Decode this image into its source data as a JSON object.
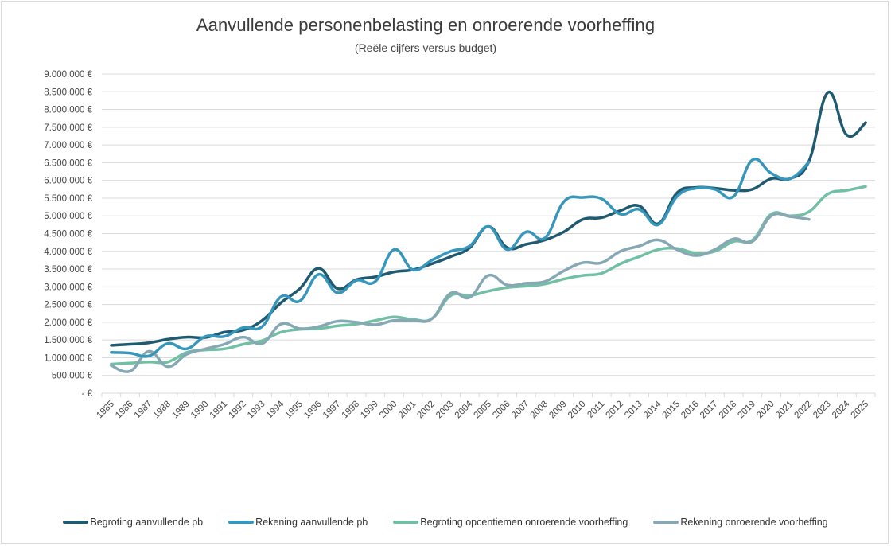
{
  "chart_data": {
    "type": "line",
    "title": "Aanvullende personenbelasting en onroerende voorheffing",
    "subtitle": "(Reële cijfers versus budget)",
    "xlabel": "",
    "ylabel": "",
    "ylim": [
      0,
      9000000
    ],
    "y_ticks": [
      0,
      500000,
      1000000,
      1500000,
      2000000,
      2500000,
      3000000,
      3500000,
      4000000,
      4500000,
      5000000,
      5500000,
      6000000,
      6500000,
      7000000,
      7500000,
      8000000,
      8500000,
      9000000
    ],
    "y_tick_labels": [
      "- €",
      "500.000 €",
      "1.000.000 €",
      "1.500.000 €",
      "2.000.000 €",
      "2.500.000 €",
      "3.000.000 €",
      "3.500.000 €",
      "4.000.000 €",
      "4.500.000 €",
      "5.000.000 €",
      "5.500.000 €",
      "6.000.000 €",
      "6.500.000 €",
      "7.000.000 €",
      "7.500.000 €",
      "8.000.000 €",
      "8.500.000 €",
      "9.000.000 €"
    ],
    "grid": true,
    "smooth": true,
    "legend_position": "bottom",
    "categories": [
      "1985",
      "1986",
      "1987",
      "1988",
      "1989",
      "1990",
      "1991",
      "1992",
      "1993",
      "1994",
      "1995",
      "1996",
      "1997",
      "1998",
      "1999",
      "2000",
      "2001",
      "2002",
      "2003",
      "2004",
      "2005",
      "2006",
      "2007",
      "2008",
      "2009",
      "2010",
      "2011",
      "2012",
      "2013",
      "2014",
      "2015",
      "2016",
      "2017",
      "2018",
      "2019",
      "2020",
      "2021",
      "2022",
      "2023",
      "2024",
      "2025"
    ],
    "series": [
      {
        "name": "Begroting aanvullende pb",
        "color": "#1f5a70",
        "values": [
          1350000,
          1380000,
          1420000,
          1520000,
          1580000,
          1570000,
          1720000,
          1780000,
          2050000,
          2550000,
          2950000,
          3520000,
          2950000,
          3200000,
          3280000,
          3420000,
          3480000,
          3650000,
          3850000,
          4100000,
          4700000,
          4100000,
          4200000,
          4320000,
          4550000,
          4900000,
          4950000,
          5150000,
          5280000,
          4780000,
          5650000,
          5800000,
          5780000,
          5720000,
          5750000,
          6050000,
          6050000,
          6550000,
          8480000,
          7280000,
          7630000
        ]
      },
      {
        "name": "Rekening aanvullende pb",
        "color": "#3796bb",
        "values": [
          1150000,
          1130000,
          1050000,
          1400000,
          1250000,
          1600000,
          1600000,
          1850000,
          1880000,
          2720000,
          2600000,
          3350000,
          2830000,
          3180000,
          3150000,
          4050000,
          3480000,
          3750000,
          4000000,
          4150000,
          4700000,
          4050000,
          4550000,
          4380000,
          5400000,
          5520000,
          5480000,
          5050000,
          5180000,
          4750000,
          5550000,
          5780000,
          5750000,
          5550000,
          6580000,
          6200000,
          6050000,
          6520000,
          null,
          null,
          null
        ]
      },
      {
        "name": "Begroting opcentiemen onroerende voorheffing",
        "color": "#72c0a3",
        "values": [
          820000,
          850000,
          880000,
          880000,
          1150000,
          1220000,
          1250000,
          1380000,
          1480000,
          1720000,
          1800000,
          1820000,
          1900000,
          1950000,
          2050000,
          2150000,
          2080000,
          2100000,
          2750000,
          2750000,
          2880000,
          2980000,
          3020000,
          3080000,
          3220000,
          3320000,
          3380000,
          3650000,
          3850000,
          4050000,
          4080000,
          3950000,
          4000000,
          4280000,
          4320000,
          5050000,
          5000000,
          5120000,
          5620000,
          5720000,
          5830000
        ]
      },
      {
        "name": "Rekening onroerende voorheffing",
        "color": "#86a8b4",
        "values": [
          780000,
          620000,
          1180000,
          750000,
          1100000,
          1250000,
          1380000,
          1580000,
          1400000,
          1950000,
          1820000,
          1880000,
          2030000,
          2000000,
          1930000,
          2050000,
          2050000,
          2100000,
          2820000,
          2700000,
          3320000,
          3050000,
          3100000,
          3150000,
          3450000,
          3680000,
          3680000,
          4000000,
          4150000,
          4320000,
          4050000,
          3880000,
          4050000,
          4350000,
          4280000,
          5000000,
          4980000,
          4900000,
          null,
          null,
          null
        ]
      }
    ]
  }
}
